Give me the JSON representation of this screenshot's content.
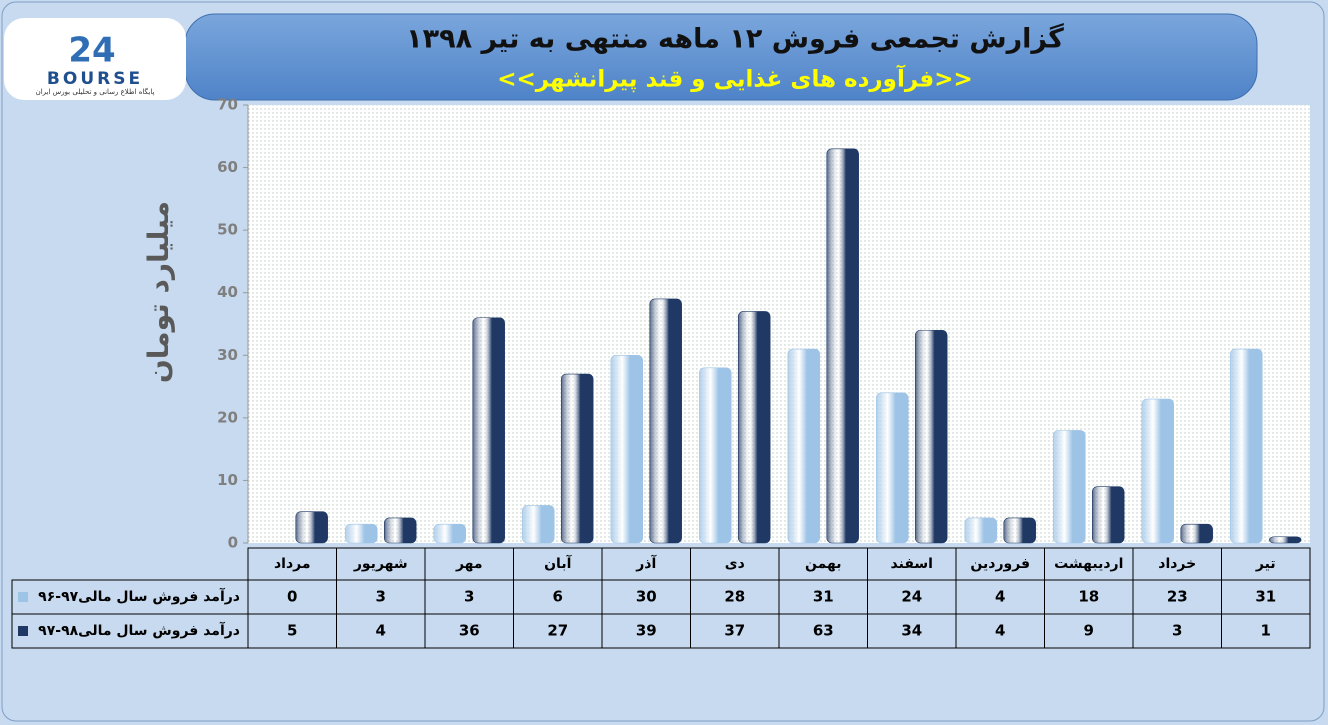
{
  "chart_data": {
    "type": "bar",
    "title": "گزارش تجمعی فروش ۱۲ ماهه منتهی به تیر ۱۳۹۸",
    "subtitle": "<<فرآورده های غذایی و قند پیرانشهر>>",
    "ylabel": "میلیارد تومان",
    "logo": {
      "number": "24",
      "name": "BOURSE",
      "tagline": "پایگاه اطلاع رسانی و تحلیلی بورس ایران"
    },
    "categories": [
      "مرداد",
      "شهریور",
      "مهر",
      "آبان",
      "آذر",
      "دی",
      "بهمن",
      "اسفند",
      "فروردین",
      "اردیبهشت",
      "خرداد",
      "تیر"
    ],
    "series": [
      {
        "name": "درآمد فروش سال مالی۹۷-۹۶",
        "color": "#9dc3e6",
        "values": [
          0,
          3,
          3,
          6,
          30,
          28,
          31,
          24,
          4,
          18,
          23,
          31
        ]
      },
      {
        "name": "درآمد فروش سال مالی۹۸-۹۷",
        "color": "#1f3864",
        "values": [
          5,
          4,
          36,
          27,
          39,
          37,
          63,
          34,
          4,
          9,
          3,
          1
        ]
      }
    ],
    "ylim": [
      0,
      70
    ],
    "yticks": [
      0,
      10,
      20,
      30,
      40,
      50,
      60,
      70
    ],
    "grid": false
  }
}
